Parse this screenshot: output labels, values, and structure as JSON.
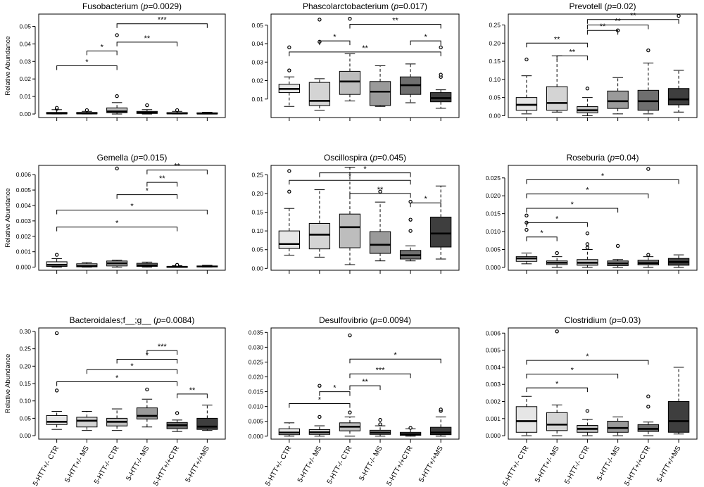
{
  "figure": {
    "group_labels": [
      "5-HTT+/- CTR",
      "5-HTT+/- MS",
      "5-HTT-/- CTR",
      "5-HTT-/- MS",
      "5-HTT+/+CTR",
      "5-HTT+/+MS"
    ],
    "fill_colors": [
      "#e6e6e6",
      "#d4d4d4",
      "#bdbdbd",
      "#9a9a9a",
      "#6f6f6f",
      "#3e3e3e"
    ]
  },
  "chart_data": [
    {
      "type": "box",
      "name": "Fusobacterium",
      "p_label": "p",
      "p_value": "=0.0029",
      "ylabel": "Relative Abundance",
      "ylim": [
        -0.002,
        0.057
      ],
      "yticks": [
        0,
        0.01,
        0.02,
        0.03,
        0.04,
        0.05
      ],
      "ytick_labels": [
        "0.00",
        "0.01",
        "0.02",
        "0.03",
        "0.04",
        "0.05"
      ],
      "boxes": [
        {
          "lo": 0,
          "q1": 0.0001,
          "med": 0.0004,
          "q3": 0.0009,
          "hi": 0.0025,
          "outliers": [
            0.003,
            0.0035
          ]
        },
        {
          "lo": 0,
          "q1": 0.0001,
          "med": 0.0004,
          "q3": 0.0009,
          "hi": 0.0015,
          "outliers": [
            0.0022
          ]
        },
        {
          "lo": 0,
          "q1": 0.0008,
          "med": 0.0015,
          "q3": 0.0035,
          "hi": 0.0065,
          "outliers": [
            0.0102,
            0.045
          ]
        },
        {
          "lo": 0,
          "q1": 0.0003,
          "med": 0.0008,
          "q3": 0.0015,
          "hi": 0.0025,
          "outliers": [
            0.005
          ]
        },
        {
          "lo": 0,
          "q1": 0.0001,
          "med": 0.0004,
          "q3": 0.0008,
          "hi": 0.0015,
          "outliers": [
            0.0022
          ]
        },
        {
          "lo": 0,
          "q1": 0.0001,
          "med": 0.0003,
          "q3": 0.0007,
          "hi": 0.001,
          "outliers": []
        }
      ],
      "brackets": [
        {
          "a": 0,
          "b": 2,
          "y": 0.0275,
          "label": "*"
        },
        {
          "a": 1,
          "b": 2,
          "y": 0.036,
          "label": "*"
        },
        {
          "a": 2,
          "b": 4,
          "y": 0.041,
          "label": "**"
        },
        {
          "a": 2,
          "b": 5,
          "y": 0.0515,
          "label": "***"
        }
      ]
    },
    {
      "type": "box",
      "name": "Phascolarctobacterium",
      "p_label": "p",
      "p_value": "=0.017",
      "ylabel": "",
      "ylim": [
        0.0,
        0.056
      ],
      "yticks": [
        0.01,
        0.02,
        0.03,
        0.04,
        0.05
      ],
      "ytick_labels": [
        "0.01",
        "0.02",
        "0.03",
        "0.04",
        "0.05"
      ],
      "boxes": [
        {
          "lo": 0.006,
          "q1": 0.0135,
          "med": 0.0155,
          "q3": 0.018,
          "hi": 0.022,
          "outliers": [
            0.0255,
            0.038
          ]
        },
        {
          "lo": 0.004,
          "q1": 0.0065,
          "med": 0.009,
          "q3": 0.019,
          "hi": 0.021,
          "outliers": [
            0.041,
            0.053
          ]
        },
        {
          "lo": 0.009,
          "q1": 0.0125,
          "med": 0.0195,
          "q3": 0.025,
          "hi": 0.0345,
          "outliers": [
            0.0535
          ]
        },
        {
          "lo": 0.006,
          "q1": 0.0065,
          "med": 0.014,
          "q3": 0.0195,
          "hi": 0.028,
          "outliers": []
        },
        {
          "lo": 0.008,
          "q1": 0.0125,
          "med": 0.0175,
          "q3": 0.022,
          "hi": 0.029,
          "outliers": []
        },
        {
          "lo": 0.005,
          "q1": 0.0085,
          "med": 0.0105,
          "q3": 0.0135,
          "hi": 0.015,
          "outliers": [
            0.022,
            0.0232,
            0.038
          ]
        }
      ],
      "brackets": [
        {
          "a": 0,
          "b": 5,
          "y": 0.0355,
          "label": "**"
        },
        {
          "a": 1,
          "b": 2,
          "y": 0.0415,
          "label": "*"
        },
        {
          "a": 2,
          "b": 5,
          "y": 0.0505,
          "label": "**"
        },
        {
          "a": 4,
          "b": 5,
          "y": 0.0415,
          "label": "*"
        }
      ]
    },
    {
      "type": "box",
      "name": "Prevotell",
      "p_label": "p",
      "p_value": "=0.02",
      "ylabel": "",
      "ylim": [
        -0.005,
        0.28
      ],
      "yticks": [
        0,
        0.05,
        0.1,
        0.15,
        0.2,
        0.25
      ],
      "ytick_labels": [
        "0.00",
        "0.05",
        "0.10",
        "0.15",
        "0.20",
        "0.25"
      ],
      "boxes": [
        {
          "lo": 0.005,
          "q1": 0.015,
          "med": 0.03,
          "q3": 0.05,
          "hi": 0.11,
          "outliers": [
            0.155
          ]
        },
        {
          "lo": 0.01,
          "q1": 0.015,
          "med": 0.035,
          "q3": 0.08,
          "hi": 0.165,
          "outliers": []
        },
        {
          "lo": 0,
          "q1": 0.008,
          "med": 0.015,
          "q3": 0.025,
          "hi": 0.05,
          "outliers": [
            0.075
          ]
        },
        {
          "lo": 0.005,
          "q1": 0.02,
          "med": 0.04,
          "q3": 0.068,
          "hi": 0.105,
          "outliers": [
            0.235
          ]
        },
        {
          "lo": 0.005,
          "q1": 0.015,
          "med": 0.04,
          "q3": 0.07,
          "hi": 0.145,
          "outliers": [
            0.18
          ]
        },
        {
          "lo": 0.01,
          "q1": 0.03,
          "med": 0.045,
          "q3": 0.075,
          "hi": 0.125,
          "outliers": [
            0.275
          ]
        }
      ],
      "brackets": [
        {
          "a": 0,
          "b": 2,
          "y": 0.2,
          "label": "**"
        },
        {
          "a": 1,
          "b": 2,
          "y": 0.165,
          "label": "**"
        },
        {
          "a": 2,
          "b": 3,
          "y": 0.235,
          "label": "**"
        },
        {
          "a": 2,
          "b": 4,
          "y": 0.25,
          "label": "**"
        },
        {
          "a": 2,
          "b": 5,
          "y": 0.265,
          "label": "**"
        }
      ]
    },
    {
      "type": "box",
      "name": "Gemella",
      "p_label": "p",
      "p_value": "=0.015",
      "ylabel": "Relative Abundance",
      "ylim": [
        -0.0002,
        0.0066
      ],
      "yticks": [
        0,
        0.001,
        0.002,
        0.003,
        0.004,
        0.005,
        0.006
      ],
      "ytick_labels": [
        "0.000",
        "0.001",
        "0.002",
        "0.003",
        "0.004",
        "0.005",
        "0.006"
      ],
      "boxes": [
        {
          "lo": 0,
          "q1": 5e-05,
          "med": 0.00015,
          "q3": 0.00035,
          "hi": 0.00055,
          "outliers": [
            0.0008
          ]
        },
        {
          "lo": 0,
          "q1": 2e-05,
          "med": 8e-05,
          "q3": 0.00022,
          "hi": 0.0003,
          "outliers": []
        },
        {
          "lo": 0,
          "q1": 8e-05,
          "med": 0.00025,
          "q3": 0.0004,
          "hi": 0.00045,
          "outliers": [
            0.0064
          ]
        },
        {
          "lo": 0,
          "q1": 5e-05,
          "med": 0.00012,
          "q3": 0.00025,
          "hi": 0.00033,
          "outliers": []
        },
        {
          "lo": 0,
          "q1": 0,
          "med": 2e-05,
          "q3": 5e-05,
          "hi": 0.0001,
          "outliers": [
            0.00015
          ]
        },
        {
          "lo": 0,
          "q1": 1e-05,
          "med": 4e-05,
          "q3": 8e-05,
          "hi": 0.00012,
          "outliers": []
        }
      ],
      "brackets": [
        {
          "a": 0,
          "b": 4,
          "y": 0.0026,
          "label": "*"
        },
        {
          "a": 0,
          "b": 5,
          "y": 0.0037,
          "label": "*"
        },
        {
          "a": 2,
          "b": 4,
          "y": 0.0047,
          "label": "*"
        },
        {
          "a": 3,
          "b": 4,
          "y": 0.0055,
          "label": "**"
        },
        {
          "a": 3,
          "b": 5,
          "y": 0.0063,
          "label": "**"
        }
      ]
    },
    {
      "type": "box",
      "name": "Oscillospira",
      "p_label": "p",
      "p_value": "=0.045",
      "ylabel": "",
      "ylim": [
        -0.005,
        0.275
      ],
      "yticks": [
        0,
        0.05,
        0.1,
        0.15,
        0.2,
        0.25
      ],
      "ytick_labels": [
        "0.00",
        "0.05",
        "0.10",
        "0.15",
        "0.20",
        "0.25"
      ],
      "boxes": [
        {
          "lo": 0.035,
          "q1": 0.053,
          "med": 0.065,
          "q3": 0.1,
          "hi": 0.16,
          "outliers": [
            0.205,
            0.26
          ]
        },
        {
          "lo": 0.03,
          "q1": 0.052,
          "med": 0.09,
          "q3": 0.12,
          "hi": 0.21,
          "outliers": []
        },
        {
          "lo": 0.01,
          "q1": 0.055,
          "med": 0.11,
          "q3": 0.145,
          "hi": 0.27,
          "outliers": []
        },
        {
          "lo": 0.02,
          "q1": 0.04,
          "med": 0.063,
          "q3": 0.098,
          "hi": 0.177,
          "outliers": [
            0.205
          ]
        },
        {
          "lo": 0.02,
          "q1": 0.025,
          "med": 0.035,
          "q3": 0.048,
          "hi": 0.06,
          "outliers": [
            0.1,
            0.13,
            0.178
          ]
        },
        {
          "lo": 0.025,
          "q1": 0.057,
          "med": 0.093,
          "q3": 0.137,
          "hi": 0.22,
          "outliers": []
        }
      ],
      "brackets": [
        {
          "a": 0,
          "b": 4,
          "y": 0.235,
          "label": "*"
        },
        {
          "a": 1,
          "b": 4,
          "y": 0.255,
          "label": "*"
        },
        {
          "a": 2,
          "b": 4,
          "y": 0.2,
          "label": "**"
        },
        {
          "a": 4,
          "b": 5,
          "y": 0.175,
          "label": "*"
        }
      ]
    },
    {
      "type": "box",
      "name": "Roseburia",
      "p_label": "p",
      "p_value": "=0.04",
      "ylabel": "",
      "ylim": [
        -0.0008,
        0.0285
      ],
      "yticks": [
        0,
        0.005,
        0.01,
        0.015,
        0.02,
        0.025
      ],
      "ytick_labels": [
        "0.000",
        "0.005",
        "0.010",
        "0.015",
        "0.020",
        "0.025"
      ],
      "boxes": [
        {
          "lo": 0.001,
          "q1": 0.0017,
          "med": 0.0025,
          "q3": 0.003,
          "hi": 0.004,
          "outliers": [
            0.0105,
            0.0125,
            0.0145
          ]
        },
        {
          "lo": 0,
          "q1": 0.0008,
          "med": 0.0013,
          "q3": 0.0018,
          "hi": 0.003,
          "outliers": [
            0.004
          ]
        },
        {
          "lo": 0,
          "q1": 0.0006,
          "med": 0.0013,
          "q3": 0.0022,
          "hi": 0.005,
          "outliers": [
            0.0055,
            0.0065,
            0.0095
          ]
        },
        {
          "lo": 0,
          "q1": 0.0005,
          "med": 0.0011,
          "q3": 0.0018,
          "hi": 0.0022,
          "outliers": [
            0.006
          ]
        },
        {
          "lo": 0,
          "q1": 0.0007,
          "med": 0.0012,
          "q3": 0.002,
          "hi": 0.003,
          "outliers": [
            0.0035,
            0.0275
          ]
        },
        {
          "lo": 0,
          "q1": 0.0006,
          "med": 0.0015,
          "q3": 0.0025,
          "hi": 0.0035,
          "outliers": []
        }
      ],
      "brackets": [
        {
          "a": 0,
          "b": 1,
          "y": 0.0085,
          "label": "*"
        },
        {
          "a": 0,
          "b": 2,
          "y": 0.0125,
          "label": "*"
        },
        {
          "a": 0,
          "b": 3,
          "y": 0.0165,
          "label": "*"
        },
        {
          "a": 0,
          "b": 4,
          "y": 0.0205,
          "label": "*"
        },
        {
          "a": 0,
          "b": 5,
          "y": 0.0245,
          "label": "*"
        }
      ]
    },
    {
      "type": "box",
      "name": "Bacteroidales;f__;g__",
      "p_label": "p",
      "p_value": "=0.0084",
      "ylabel": "Relative Abundance",
      "ylim": [
        -0.01,
        0.31
      ],
      "yticks": [
        0,
        0.05,
        0.1,
        0.15,
        0.2,
        0.25,
        0.3
      ],
      "ytick_labels": [
        "0.00",
        "0.05",
        "0.10",
        "0.15",
        "0.20",
        "0.25",
        "0.30"
      ],
      "boxes": [
        {
          "lo": 0.018,
          "q1": 0.032,
          "med": 0.04,
          "q3": 0.058,
          "hi": 0.07,
          "outliers": [
            0.13,
            0.295
          ]
        },
        {
          "lo": 0.015,
          "q1": 0.025,
          "med": 0.043,
          "q3": 0.053,
          "hi": 0.07,
          "outliers": []
        },
        {
          "lo": 0.015,
          "q1": 0.028,
          "med": 0.04,
          "q3": 0.05,
          "hi": 0.077,
          "outliers": []
        },
        {
          "lo": 0.025,
          "q1": 0.048,
          "med": 0.057,
          "q3": 0.08,
          "hi": 0.105,
          "outliers": [
            0.133
          ]
        },
        {
          "lo": 0.012,
          "q1": 0.02,
          "med": 0.03,
          "q3": 0.038,
          "hi": 0.045,
          "outliers": [
            0.065
          ]
        },
        {
          "lo": 0.015,
          "q1": 0.018,
          "med": 0.026,
          "q3": 0.05,
          "hi": 0.088,
          "outliers": []
        }
      ],
      "brackets": [
        {
          "a": 0,
          "b": 4,
          "y": 0.155,
          "label": "*"
        },
        {
          "a": 1,
          "b": 4,
          "y": 0.19,
          "label": "*"
        },
        {
          "a": 2,
          "b": 4,
          "y": 0.22,
          "label": "*"
        },
        {
          "a": 3,
          "b": 4,
          "y": 0.245,
          "label": "***"
        },
        {
          "a": 4,
          "b": 5,
          "y": 0.12,
          "label": "**"
        }
      ]
    },
    {
      "type": "box",
      "name": "Desulfovibrio",
      "p_label": "p",
      "p_value": "=0.0094",
      "ylabel": "",
      "ylim": [
        -0.001,
        0.0365
      ],
      "yticks": [
        0,
        0.005,
        0.01,
        0.015,
        0.02,
        0.025,
        0.03,
        0.035
      ],
      "ytick_labels": [
        "0.000",
        "0.005",
        "0.010",
        "0.015",
        "0.020",
        "0.025",
        "0.030",
        "0.035"
      ],
      "boxes": [
        {
          "lo": 0,
          "q1": 0.0005,
          "med": 0.0012,
          "q3": 0.0025,
          "hi": 0.0045,
          "outliers": []
        },
        {
          "lo": 0,
          "q1": 0.0006,
          "med": 0.0013,
          "q3": 0.0022,
          "hi": 0.0035,
          "outliers": [
            0.0065,
            0.017
          ]
        },
        {
          "lo": 0,
          "q1": 0.0018,
          "med": 0.0032,
          "q3": 0.0045,
          "hi": 0.0065,
          "outliers": [
            0.008,
            0.034
          ]
        },
        {
          "lo": 0,
          "q1": 0.0006,
          "med": 0.0012,
          "q3": 0.002,
          "hi": 0.0035,
          "outliers": [
            0.004,
            0.0055
          ]
        },
        {
          "lo": 0,
          "q1": 0.0003,
          "med": 0.0007,
          "q3": 0.0013,
          "hi": 0.0025,
          "outliers": [
            0.0028
          ]
        },
        {
          "lo": 0,
          "q1": 0.0005,
          "med": 0.0012,
          "q3": 0.003,
          "hi": 0.0065,
          "outliers": [
            0.0085,
            0.009
          ]
        }
      ],
      "brackets": [
        {
          "a": 0,
          "b": 2,
          "y": 0.011,
          "label": "*"
        },
        {
          "a": 1,
          "b": 2,
          "y": 0.015,
          "label": "*"
        },
        {
          "a": 2,
          "b": 3,
          "y": 0.017,
          "label": "**"
        },
        {
          "a": 2,
          "b": 4,
          "y": 0.021,
          "label": "***"
        },
        {
          "a": 2,
          "b": 5,
          "y": 0.026,
          "label": "*"
        }
      ]
    },
    {
      "type": "box",
      "name": "Clostridium",
      "p_label": "p",
      "p_value": "=0.03",
      "ylabel": "",
      "ylim": [
        -0.0002,
        0.0063
      ],
      "yticks": [
        0,
        0.001,
        0.002,
        0.003,
        0.004,
        0.005,
        0.006
      ],
      "ytick_labels": [
        "0.000",
        "0.001",
        "0.002",
        "0.003",
        "0.004",
        "0.005",
        "0.006"
      ],
      "boxes": [
        {
          "lo": 0,
          "q1": 0.0002,
          "med": 0.00085,
          "q3": 0.0017,
          "hi": 0.0023,
          "outliers": []
        },
        {
          "lo": 0,
          "q1": 0.0003,
          "med": 0.00065,
          "q3": 0.00135,
          "hi": 0.0018,
          "outliers": [
            0.0061
          ]
        },
        {
          "lo": 0,
          "q1": 0.0002,
          "med": 0.0004,
          "q3": 0.0006,
          "hi": 0.00095,
          "outliers": [
            0.00145
          ]
        },
        {
          "lo": 0,
          "q1": 0.0002,
          "med": 0.00045,
          "q3": 0.00085,
          "hi": 0.0011,
          "outliers": []
        },
        {
          "lo": 0,
          "q1": 0.00025,
          "med": 0.0004,
          "q3": 0.00065,
          "hi": 0.0008,
          "outliers": [
            0.0017,
            0.0023
          ]
        },
        {
          "lo": 0.0001,
          "q1": 0.0002,
          "med": 0.00085,
          "q3": 0.002,
          "hi": 0.004,
          "outliers": []
        }
      ],
      "brackets": [
        {
          "a": 0,
          "b": 2,
          "y": 0.0028,
          "label": "*"
        },
        {
          "a": 0,
          "b": 3,
          "y": 0.0036,
          "label": "*"
        },
        {
          "a": 0,
          "b": 4,
          "y": 0.0044,
          "label": "*"
        }
      ]
    }
  ]
}
